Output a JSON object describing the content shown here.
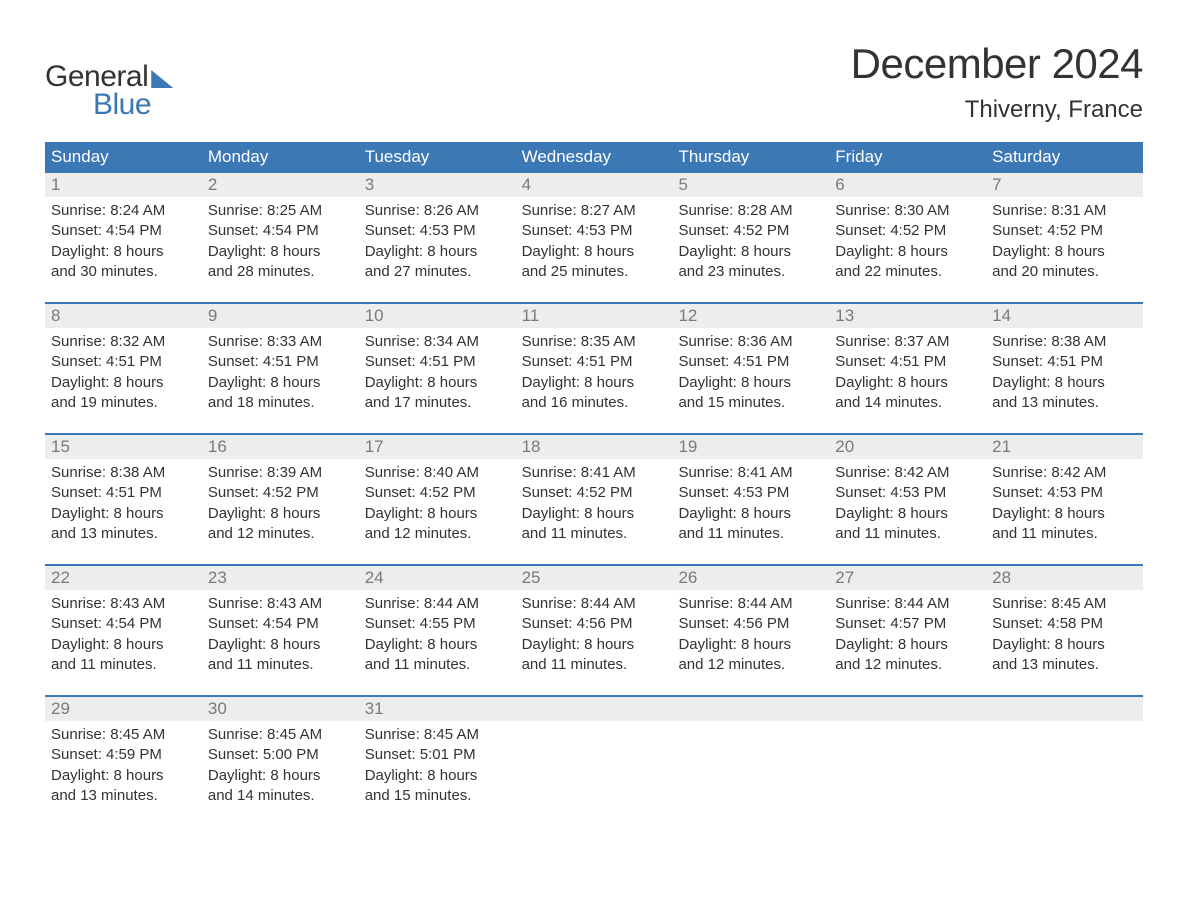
{
  "logo": {
    "line1": "General",
    "line2": "Blue"
  },
  "title": "December 2024",
  "location": "Thiverny, France",
  "colors": {
    "header_bg": "#3b78b5",
    "header_text": "#ffffff",
    "daynum_bg": "#ededed",
    "daynum_text": "#7a7a7a",
    "body_text": "#333333",
    "divider": "#3b78b5",
    "page_bg": "#ffffff"
  },
  "typography": {
    "title_fontsize": 42,
    "location_fontsize": 24,
    "dayheader_fontsize": 17,
    "daynum_fontsize": 17,
    "body_fontsize": 15
  },
  "day_headers": [
    "Sunday",
    "Monday",
    "Tuesday",
    "Wednesday",
    "Thursday",
    "Friday",
    "Saturday"
  ],
  "weeks": [
    [
      {
        "n": "1",
        "sunrise": "Sunrise: 8:24 AM",
        "sunset": "Sunset: 4:54 PM",
        "d1": "Daylight: 8 hours",
        "d2": "and 30 minutes."
      },
      {
        "n": "2",
        "sunrise": "Sunrise: 8:25 AM",
        "sunset": "Sunset: 4:54 PM",
        "d1": "Daylight: 8 hours",
        "d2": "and 28 minutes."
      },
      {
        "n": "3",
        "sunrise": "Sunrise: 8:26 AM",
        "sunset": "Sunset: 4:53 PM",
        "d1": "Daylight: 8 hours",
        "d2": "and 27 minutes."
      },
      {
        "n": "4",
        "sunrise": "Sunrise: 8:27 AM",
        "sunset": "Sunset: 4:53 PM",
        "d1": "Daylight: 8 hours",
        "d2": "and 25 minutes."
      },
      {
        "n": "5",
        "sunrise": "Sunrise: 8:28 AM",
        "sunset": "Sunset: 4:52 PM",
        "d1": "Daylight: 8 hours",
        "d2": "and 23 minutes."
      },
      {
        "n": "6",
        "sunrise": "Sunrise: 8:30 AM",
        "sunset": "Sunset: 4:52 PM",
        "d1": "Daylight: 8 hours",
        "d2": "and 22 minutes."
      },
      {
        "n": "7",
        "sunrise": "Sunrise: 8:31 AM",
        "sunset": "Sunset: 4:52 PM",
        "d1": "Daylight: 8 hours",
        "d2": "and 20 minutes."
      }
    ],
    [
      {
        "n": "8",
        "sunrise": "Sunrise: 8:32 AM",
        "sunset": "Sunset: 4:51 PM",
        "d1": "Daylight: 8 hours",
        "d2": "and 19 minutes."
      },
      {
        "n": "9",
        "sunrise": "Sunrise: 8:33 AM",
        "sunset": "Sunset: 4:51 PM",
        "d1": "Daylight: 8 hours",
        "d2": "and 18 minutes."
      },
      {
        "n": "10",
        "sunrise": "Sunrise: 8:34 AM",
        "sunset": "Sunset: 4:51 PM",
        "d1": "Daylight: 8 hours",
        "d2": "and 17 minutes."
      },
      {
        "n": "11",
        "sunrise": "Sunrise: 8:35 AM",
        "sunset": "Sunset: 4:51 PM",
        "d1": "Daylight: 8 hours",
        "d2": "and 16 minutes."
      },
      {
        "n": "12",
        "sunrise": "Sunrise: 8:36 AM",
        "sunset": "Sunset: 4:51 PM",
        "d1": "Daylight: 8 hours",
        "d2": "and 15 minutes."
      },
      {
        "n": "13",
        "sunrise": "Sunrise: 8:37 AM",
        "sunset": "Sunset: 4:51 PM",
        "d1": "Daylight: 8 hours",
        "d2": "and 14 minutes."
      },
      {
        "n": "14",
        "sunrise": "Sunrise: 8:38 AM",
        "sunset": "Sunset: 4:51 PM",
        "d1": "Daylight: 8 hours",
        "d2": "and 13 minutes."
      }
    ],
    [
      {
        "n": "15",
        "sunrise": "Sunrise: 8:38 AM",
        "sunset": "Sunset: 4:51 PM",
        "d1": "Daylight: 8 hours",
        "d2": "and 13 minutes."
      },
      {
        "n": "16",
        "sunrise": "Sunrise: 8:39 AM",
        "sunset": "Sunset: 4:52 PM",
        "d1": "Daylight: 8 hours",
        "d2": "and 12 minutes."
      },
      {
        "n": "17",
        "sunrise": "Sunrise: 8:40 AM",
        "sunset": "Sunset: 4:52 PM",
        "d1": "Daylight: 8 hours",
        "d2": "and 12 minutes."
      },
      {
        "n": "18",
        "sunrise": "Sunrise: 8:41 AM",
        "sunset": "Sunset: 4:52 PM",
        "d1": "Daylight: 8 hours",
        "d2": "and 11 minutes."
      },
      {
        "n": "19",
        "sunrise": "Sunrise: 8:41 AM",
        "sunset": "Sunset: 4:53 PM",
        "d1": "Daylight: 8 hours",
        "d2": "and 11 minutes."
      },
      {
        "n": "20",
        "sunrise": "Sunrise: 8:42 AM",
        "sunset": "Sunset: 4:53 PM",
        "d1": "Daylight: 8 hours",
        "d2": "and 11 minutes."
      },
      {
        "n": "21",
        "sunrise": "Sunrise: 8:42 AM",
        "sunset": "Sunset: 4:53 PM",
        "d1": "Daylight: 8 hours",
        "d2": "and 11 minutes."
      }
    ],
    [
      {
        "n": "22",
        "sunrise": "Sunrise: 8:43 AM",
        "sunset": "Sunset: 4:54 PM",
        "d1": "Daylight: 8 hours",
        "d2": "and 11 minutes."
      },
      {
        "n": "23",
        "sunrise": "Sunrise: 8:43 AM",
        "sunset": "Sunset: 4:54 PM",
        "d1": "Daylight: 8 hours",
        "d2": "and 11 minutes."
      },
      {
        "n": "24",
        "sunrise": "Sunrise: 8:44 AM",
        "sunset": "Sunset: 4:55 PM",
        "d1": "Daylight: 8 hours",
        "d2": "and 11 minutes."
      },
      {
        "n": "25",
        "sunrise": "Sunrise: 8:44 AM",
        "sunset": "Sunset: 4:56 PM",
        "d1": "Daylight: 8 hours",
        "d2": "and 11 minutes."
      },
      {
        "n": "26",
        "sunrise": "Sunrise: 8:44 AM",
        "sunset": "Sunset: 4:56 PM",
        "d1": "Daylight: 8 hours",
        "d2": "and 12 minutes."
      },
      {
        "n": "27",
        "sunrise": "Sunrise: 8:44 AM",
        "sunset": "Sunset: 4:57 PM",
        "d1": "Daylight: 8 hours",
        "d2": "and 12 minutes."
      },
      {
        "n": "28",
        "sunrise": "Sunrise: 8:45 AM",
        "sunset": "Sunset: 4:58 PM",
        "d1": "Daylight: 8 hours",
        "d2": "and 13 minutes."
      }
    ],
    [
      {
        "n": "29",
        "sunrise": "Sunrise: 8:45 AM",
        "sunset": "Sunset: 4:59 PM",
        "d1": "Daylight: 8 hours",
        "d2": "and 13 minutes."
      },
      {
        "n": "30",
        "sunrise": "Sunrise: 8:45 AM",
        "sunset": "Sunset: 5:00 PM",
        "d1": "Daylight: 8 hours",
        "d2": "and 14 minutes."
      },
      {
        "n": "31",
        "sunrise": "Sunrise: 8:45 AM",
        "sunset": "Sunset: 5:01 PM",
        "d1": "Daylight: 8 hours",
        "d2": "and 15 minutes."
      },
      null,
      null,
      null,
      null
    ]
  ]
}
